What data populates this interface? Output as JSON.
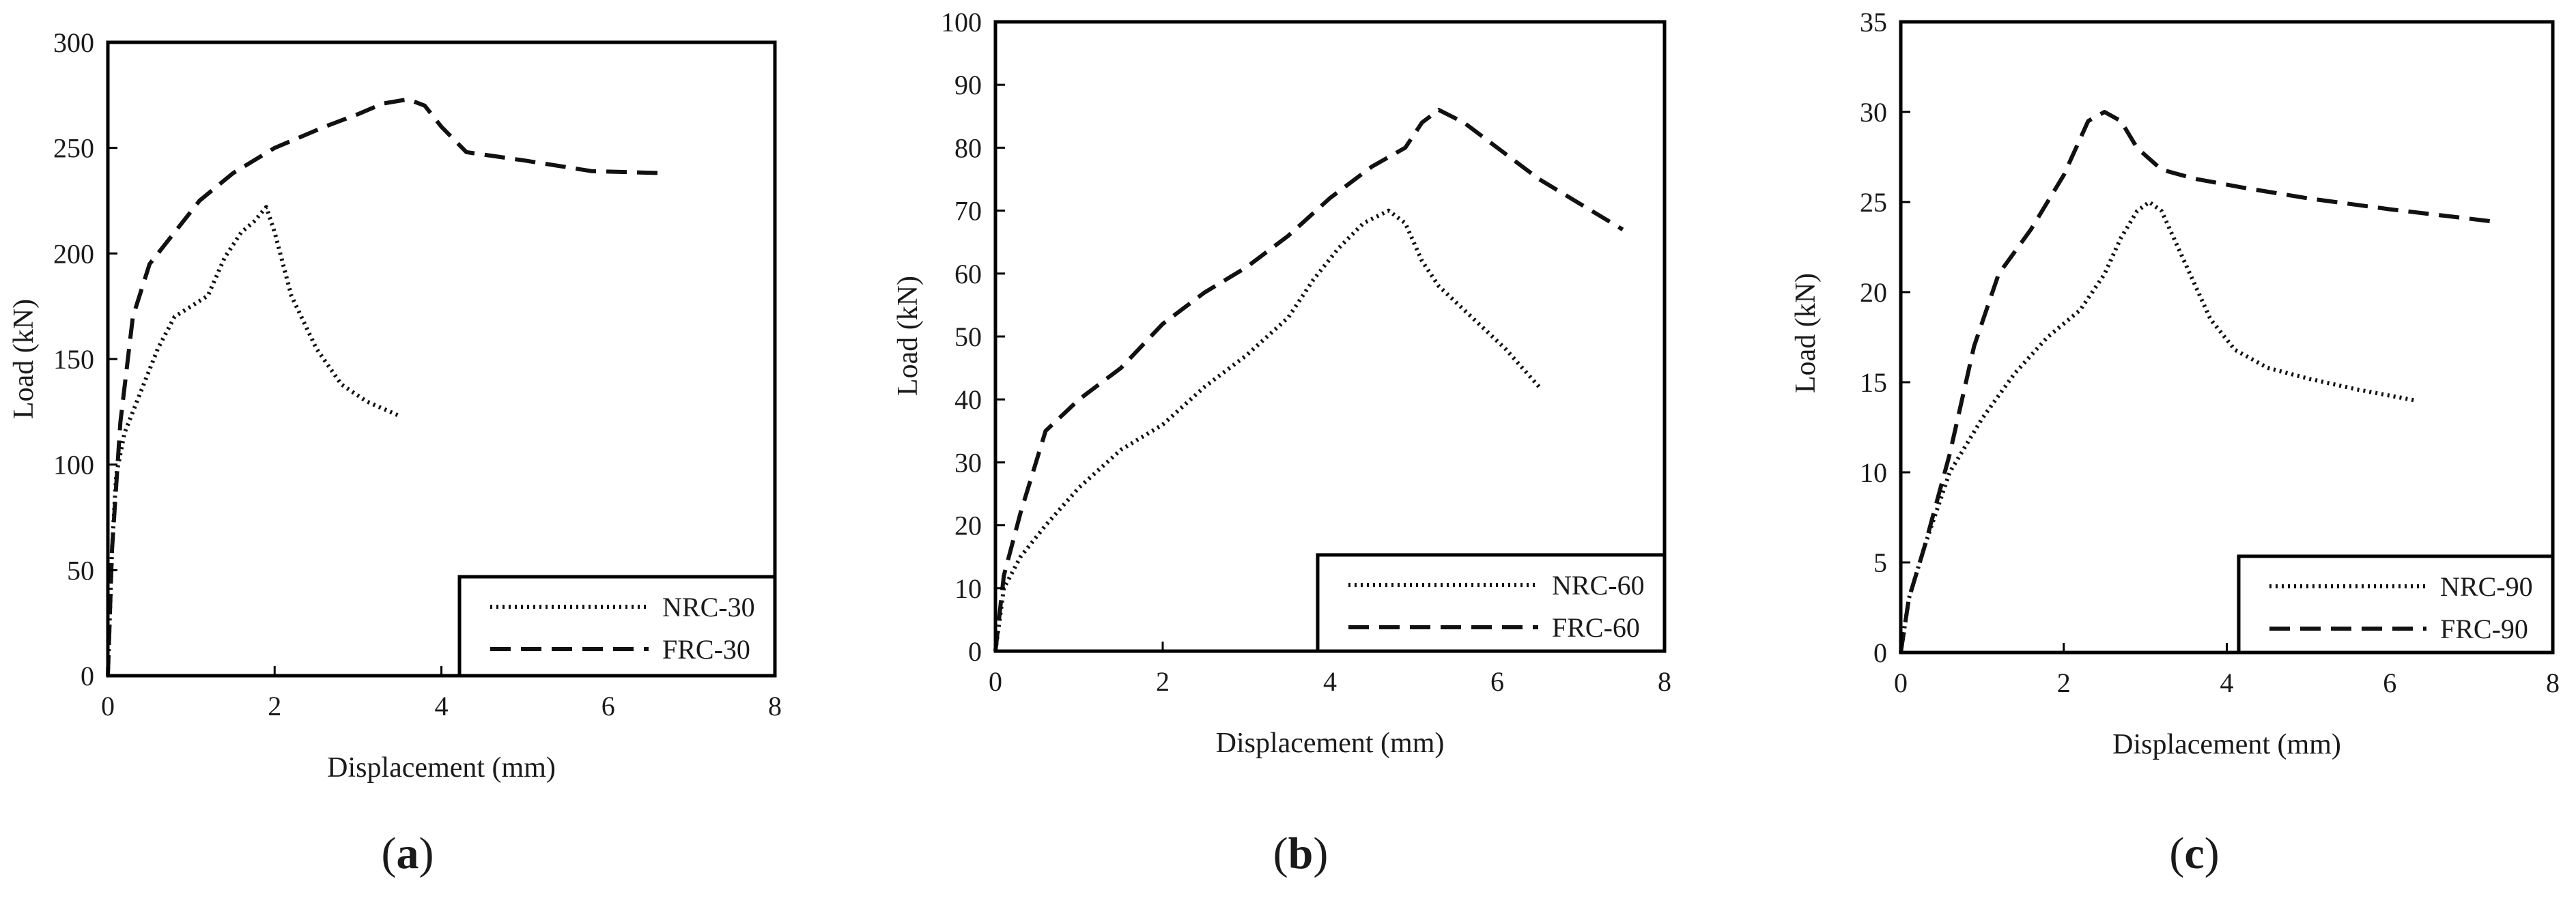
{
  "chart_data": [
    {
      "type": "line",
      "panel_label": "(a)",
      "letter": "a",
      "xlabel": "Displacement (mm)",
      "ylabel": "Load (kN)",
      "xlim": [
        0,
        8
      ],
      "ylim": [
        0,
        300
      ],
      "xticks": [
        0,
        2,
        4,
        6,
        8
      ],
      "yticks": [
        0,
        50,
        100,
        150,
        200,
        250,
        300
      ],
      "grid": false,
      "legend_position": "bottom-right",
      "series": [
        {
          "name": "NRC-30",
          "style": "dotted",
          "x": [
            0,
            0.05,
            0.1,
            0.2,
            0.4,
            0.6,
            0.8,
            1.0,
            1.2,
            1.4,
            1.6,
            1.75,
            1.9,
            2.0,
            2.2,
            2.5,
            2.8,
            3.1,
            3.5
          ],
          "y": [
            0,
            60,
            95,
            115,
            135,
            155,
            170,
            175,
            180,
            198,
            210,
            215,
            222,
            210,
            180,
            155,
            138,
            130,
            123
          ]
        },
        {
          "name": "FRC-30",
          "style": "dashed",
          "x": [
            0,
            0.05,
            0.15,
            0.3,
            0.5,
            0.8,
            1.1,
            1.5,
            2.0,
            2.6,
            3.0,
            3.3,
            3.6,
            3.8,
            4.0,
            4.3,
            5.0,
            5.8,
            6.7
          ],
          "y": [
            0,
            60,
            120,
            170,
            195,
            210,
            225,
            238,
            250,
            260,
            266,
            271,
            273,
            270,
            260,
            248,
            244,
            239,
            238
          ]
        }
      ]
    },
    {
      "type": "line",
      "panel_label": "(b)",
      "letter": "b",
      "xlabel": "Displacement (mm)",
      "ylabel": "Load (kN)",
      "xlim": [
        0,
        8
      ],
      "ylim": [
        0,
        100
      ],
      "xticks": [
        0,
        2,
        4,
        6,
        8
      ],
      "yticks": [
        0,
        10,
        20,
        30,
        40,
        50,
        60,
        70,
        80,
        90,
        100
      ],
      "grid": false,
      "legend_position": "bottom-right",
      "series": [
        {
          "name": "NRC-60",
          "style": "dotted",
          "x": [
            0,
            0.1,
            0.3,
            0.6,
            1.0,
            1.5,
            2.0,
            2.5,
            3.0,
            3.5,
            3.8,
            4.1,
            4.4,
            4.7,
            4.9,
            5.1,
            5.3,
            5.7,
            6.1,
            6.5
          ],
          "y": [
            0,
            10,
            15,
            20,
            26,
            32,
            36,
            42,
            47,
            53,
            59,
            64,
            68,
            70,
            68,
            62,
            58,
            53,
            48,
            42
          ]
        },
        {
          "name": "FRC-60",
          "style": "dashed",
          "x": [
            0,
            0.1,
            0.3,
            0.6,
            1.0,
            1.5,
            2.0,
            2.5,
            3.0,
            3.5,
            4.0,
            4.5,
            4.9,
            5.1,
            5.3,
            5.6,
            6.0,
            6.5,
            7.0,
            7.5
          ],
          "y": [
            0,
            12,
            22,
            35,
            40,
            45,
            52,
            57,
            61,
            66,
            72,
            77,
            80,
            84,
            86,
            84,
            80,
            75,
            71,
            67
          ]
        }
      ]
    },
    {
      "type": "line",
      "panel_label": "(c)",
      "letter": "c",
      "xlabel": "Displacement (mm)",
      "ylabel": "Load (kN)",
      "xlim": [
        0,
        8
      ],
      "ylim": [
        0,
        35
      ],
      "xticks": [
        0,
        2,
        4,
        6,
        8
      ],
      "yticks": [
        0,
        5,
        10,
        15,
        20,
        25,
        30,
        35
      ],
      "grid": false,
      "legend_position": "bottom-right",
      "series": [
        {
          "name": "NRC-90",
          "style": "dotted",
          "x": [
            0,
            0.1,
            0.3,
            0.6,
            1.0,
            1.4,
            1.8,
            2.2,
            2.5,
            2.7,
            2.9,
            3.05,
            3.2,
            3.5,
            3.8,
            4.1,
            4.5,
            5.0,
            5.6,
            6.3
          ],
          "y": [
            0,
            3,
            6,
            10,
            13,
            15.5,
            17.5,
            19,
            21,
            23,
            24.5,
            25,
            24.5,
            21.5,
            18.5,
            16.8,
            15.8,
            15.2,
            14.6,
            14
          ]
        },
        {
          "name": "FRC-90",
          "style": "dashed",
          "x": [
            0,
            0.1,
            0.3,
            0.6,
            0.9,
            1.2,
            1.6,
            2.0,
            2.3,
            2.5,
            2.7,
            2.9,
            3.2,
            3.6,
            4.2,
            5.0,
            6.0,
            7.3
          ],
          "y": [
            0,
            3,
            6,
            11,
            17,
            21,
            23.5,
            26.5,
            29.5,
            30,
            29.5,
            28,
            26.8,
            26.3,
            25.8,
            25.2,
            24.6,
            23.9
          ]
        }
      ]
    }
  ]
}
